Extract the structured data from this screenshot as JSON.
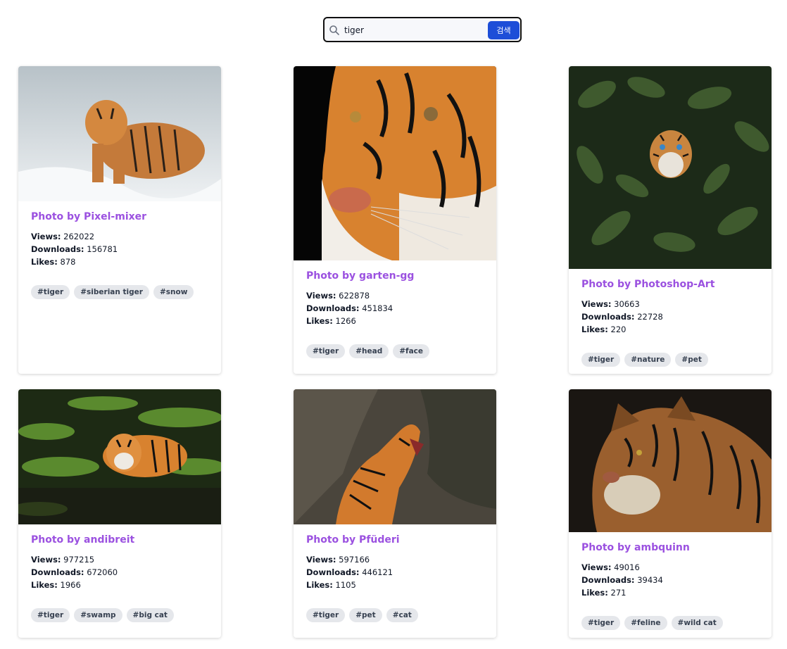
{
  "search": {
    "value": "tiger",
    "button_label": "검색"
  },
  "labels": {
    "views": "Views:",
    "downloads": "Downloads:",
    "likes": "Likes:"
  },
  "cards": [
    {
      "title": "Photo by Pixel-mixer",
      "views": "262022",
      "downloads": "156781",
      "likes": "878",
      "tags": [
        "#tiger",
        "#siberian tiger",
        "#snow"
      ]
    },
    {
      "title": "Photo by garten-gg",
      "views": "622878",
      "downloads": "451834",
      "likes": "1266",
      "tags": [
        "#tiger",
        "#head",
        "#face"
      ]
    },
    {
      "title": "Photo by Photoshop-Art",
      "views": "30663",
      "downloads": "22728",
      "likes": "220",
      "tags": [
        "#tiger",
        "#nature",
        "#pet"
      ]
    },
    {
      "title": "Photo by andibreit",
      "views": "977215",
      "downloads": "672060",
      "likes": "1966",
      "tags": [
        "#tiger",
        "#swamp",
        "#big cat"
      ]
    },
    {
      "title": "Photo by Pfüderi",
      "views": "597166",
      "downloads": "446121",
      "likes": "1105",
      "tags": [
        "#tiger",
        "#pet",
        "#cat"
      ]
    },
    {
      "title": "Photo by ambquinn",
      "views": "49016",
      "downloads": "39434",
      "likes": "271",
      "tags": [
        "#tiger",
        "#feline",
        "#wild cat"
      ]
    }
  ],
  "colors": {
    "title": "#9b51e0",
    "button": "#1d4ed8",
    "tag_bg": "#e5e7eb"
  }
}
